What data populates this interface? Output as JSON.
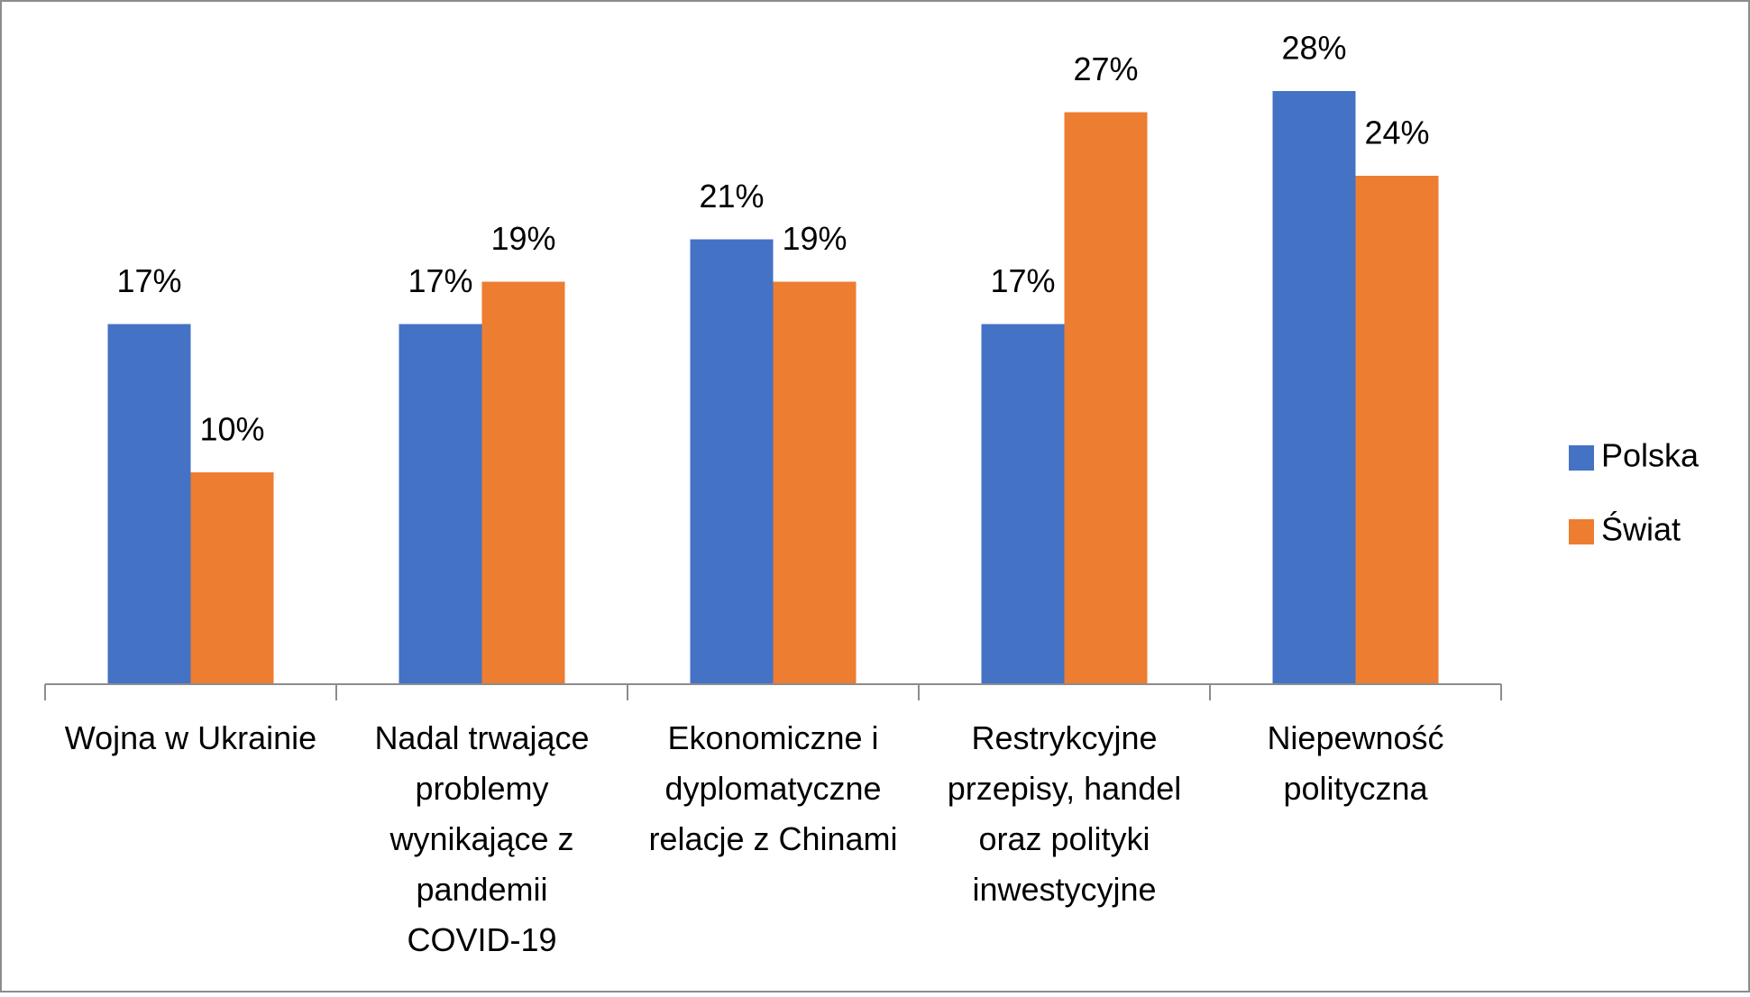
{
  "chart_data": {
    "type": "bar",
    "categories": [
      "Wojna w Ukrainie",
      "Nadal trwające problemy wynikające z pandemii COVID-19",
      "Ekonomiczne i dyplomatyczne relacje z Chinami",
      "Restrykcyjne przepisy, handel oraz polityki inwestycyjne",
      "Niepewność polityczna"
    ],
    "series": [
      {
        "name": "Polska",
        "color": "#4472c4",
        "values": [
          17,
          17,
          21,
          17,
          28
        ],
        "value_labels": [
          "17%",
          "17%",
          "21%",
          "17%",
          "28%"
        ]
      },
      {
        "name": "Świat",
        "color": "#ed7d31",
        "values": [
          10,
          19,
          19,
          27,
          24
        ],
        "value_labels": [
          "10%",
          "19%",
          "19%",
          "27%",
          "24%"
        ]
      }
    ],
    "ylim": [
      0,
      32
    ],
    "legend": "right"
  }
}
